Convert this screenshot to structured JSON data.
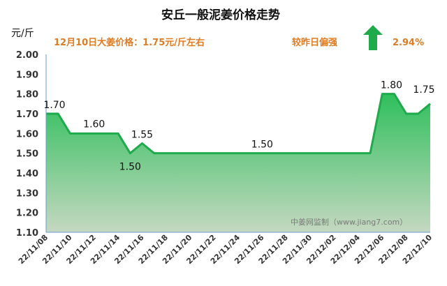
{
  "chart_data": {
    "type": "area",
    "title": "安丘一般泥姜价格走势",
    "unit": "元/斤",
    "subtitle": {
      "price_label": "12月10日大姜价格：1.75元/斤左右",
      "trend_label": "较昨日偏强",
      "change_pct": "2.94%",
      "trend_direction": "up"
    },
    "watermark": "中姜网监制（www.jiang7.com）",
    "x": [
      "22/11/08",
      "22/11/09",
      "22/11/10",
      "22/11/11",
      "22/11/12",
      "22/11/13",
      "22/11/14",
      "22/11/15",
      "22/11/16",
      "22/11/17",
      "22/11/18",
      "22/11/19",
      "22/11/20",
      "22/11/21",
      "22/11/22",
      "22/11/23",
      "22/11/24",
      "22/11/25",
      "22/11/26",
      "22/11/27",
      "22/11/28",
      "22/11/29",
      "22/11/30",
      "22/12/01",
      "22/12/02",
      "22/12/03",
      "22/12/04",
      "22/12/05",
      "22/12/06",
      "22/12/07",
      "22/12/08",
      "22/12/09",
      "22/12/10"
    ],
    "x_tick_labels": [
      "22/11/08",
      "22/11/10",
      "22/11/12",
      "22/11/14",
      "22/11/16",
      "22/11/18",
      "22/11/20",
      "22/11/22",
      "22/11/24",
      "22/11/26",
      "22/11/28",
      "22/11/30",
      "22/12/02",
      "22/12/04",
      "22/12/06",
      "22/12/08",
      "22/12/10"
    ],
    "values": [
      1.7,
      1.7,
      1.6,
      1.6,
      1.6,
      1.6,
      1.6,
      1.5,
      1.55,
      1.5,
      1.5,
      1.5,
      1.5,
      1.5,
      1.5,
      1.5,
      1.5,
      1.5,
      1.5,
      1.5,
      1.5,
      1.5,
      1.5,
      1.5,
      1.5,
      1.5,
      1.5,
      1.5,
      1.8,
      1.8,
      1.7,
      1.7,
      1.75
    ],
    "data_labels": [
      {
        "index": 0,
        "text": "1.70"
      },
      {
        "index": 4,
        "text": "1.60"
      },
      {
        "index": 7,
        "text": "1.50"
      },
      {
        "index": 8,
        "text": "1.55"
      },
      {
        "index": 18,
        "text": "1.50"
      },
      {
        "index": 29,
        "text": "1.80"
      },
      {
        "index": 32,
        "text": "1.75"
      }
    ],
    "ylim": [
      1.1,
      2.0
    ],
    "y_ticks": [
      "2.00",
      "1.90",
      "1.80",
      "1.70",
      "1.60",
      "1.50",
      "1.40",
      "1.30",
      "1.20",
      "1.10"
    ],
    "grid": false,
    "colors": {
      "line": "#1faa4b",
      "fill_top": "#2fbf5c",
      "fill_bottom": "#c5d8c1",
      "arrow": "#1faa4b",
      "subtitle_text": "#e07b22"
    }
  }
}
